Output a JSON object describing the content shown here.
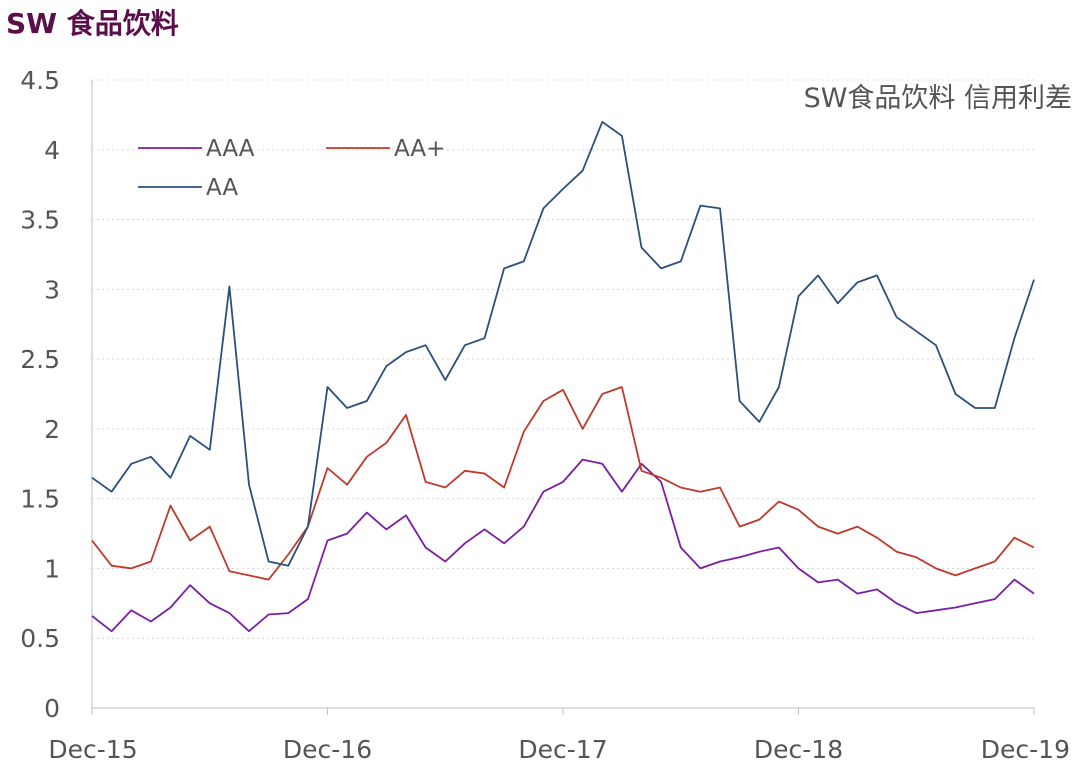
{
  "header": {
    "title": "SW 食品饮料"
  },
  "chart_data": {
    "type": "line",
    "title": "SW食品饮料 信用利差",
    "xlabel": "",
    "ylabel": "",
    "ylim": [
      0,
      4.5
    ],
    "yticks": [
      "0",
      "0.5",
      "1",
      "1.5",
      "2",
      "2.5",
      "3",
      "3.5",
      "4",
      "4.5"
    ],
    "xticks": [
      "Dec-15",
      "Dec-16",
      "Dec-17",
      "Dec-18",
      "Dec-19"
    ],
    "x": [
      "2015-12",
      "2016-01",
      "2016-02",
      "2016-03",
      "2016-04",
      "2016-05",
      "2016-06",
      "2016-07",
      "2016-08",
      "2016-09",
      "2016-10",
      "2016-11",
      "2016-12",
      "2017-01",
      "2017-02",
      "2017-03",
      "2017-04",
      "2017-05",
      "2017-06",
      "2017-07",
      "2017-08",
      "2017-09",
      "2017-10",
      "2017-11",
      "2017-12",
      "2018-01",
      "2018-02",
      "2018-03",
      "2018-04",
      "2018-05",
      "2018-06",
      "2018-07",
      "2018-08",
      "2018-09",
      "2018-10",
      "2018-11",
      "2018-12",
      "2019-01",
      "2019-02",
      "2019-03",
      "2019-04",
      "2019-05",
      "2019-06",
      "2019-07",
      "2019-08",
      "2019-09",
      "2019-10",
      "2019-11",
      "2019-12"
    ],
    "series": [
      {
        "name": "AAA",
        "color": "#7b1fa2",
        "values": [
          0.66,
          0.55,
          0.7,
          0.62,
          0.72,
          0.88,
          0.75,
          0.68,
          0.55,
          0.67,
          0.68,
          0.78,
          1.2,
          1.25,
          1.4,
          1.28,
          1.38,
          1.15,
          1.05,
          1.18,
          1.28,
          1.18,
          1.3,
          1.55,
          1.62,
          1.78,
          1.75,
          1.55,
          1.75,
          1.62,
          1.15,
          1.0,
          1.05,
          1.08,
          1.12,
          1.15,
          1.0,
          0.9,
          0.92,
          0.82,
          0.85,
          0.75,
          0.68,
          0.7,
          0.72,
          0.75,
          0.78,
          0.92,
          0.82
        ]
      },
      {
        "name": "AA+",
        "color": "#c0392b",
        "values": [
          1.2,
          1.02,
          1.0,
          1.05,
          1.45,
          1.2,
          1.3,
          0.98,
          0.95,
          0.92,
          1.1,
          1.3,
          1.72,
          1.6,
          1.8,
          1.9,
          2.1,
          1.62,
          1.58,
          1.7,
          1.68,
          1.58,
          1.98,
          2.2,
          2.28,
          2.0,
          2.25,
          2.3,
          1.7,
          1.65,
          1.58,
          1.55,
          1.58,
          1.3,
          1.35,
          1.48,
          1.42,
          1.3,
          1.25,
          1.3,
          1.22,
          1.12,
          1.08,
          1.0,
          0.95,
          1.0,
          1.05,
          1.22,
          1.15
        ]
      },
      {
        "name": "AA",
        "color": "#2c4f7c",
        "values": [
          1.65,
          1.55,
          1.75,
          1.8,
          1.65,
          1.95,
          1.85,
          3.02,
          1.6,
          1.05,
          1.02,
          1.3,
          2.3,
          2.15,
          2.2,
          2.45,
          2.55,
          2.6,
          2.35,
          2.6,
          2.65,
          3.15,
          3.2,
          3.58,
          3.72,
          3.85,
          4.2,
          4.1,
          3.3,
          3.15,
          3.2,
          3.6,
          3.58,
          2.2,
          2.05,
          2.3,
          2.95,
          3.1,
          2.9,
          3.05,
          3.1,
          2.8,
          2.7,
          2.6,
          2.25,
          2.15,
          2.15,
          2.65,
          3.07
        ]
      }
    ]
  }
}
